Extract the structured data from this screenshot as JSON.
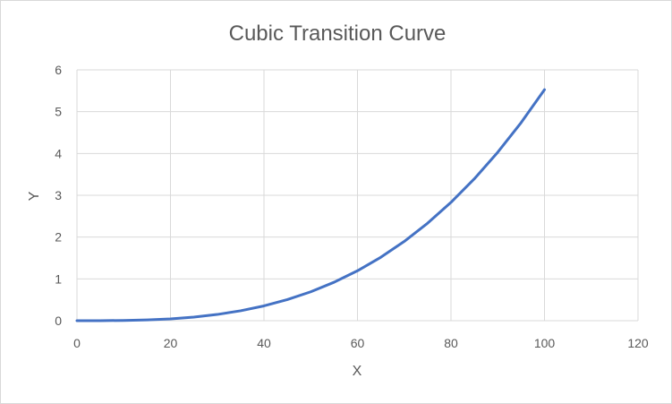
{
  "chart_data": {
    "type": "line",
    "title": "Cubic Transition Curve",
    "xlabel": "X",
    "ylabel": "Y",
    "xlim": [
      0,
      120
    ],
    "ylim": [
      0,
      6
    ],
    "xticks": [
      0,
      20,
      40,
      60,
      80,
      100,
      120
    ],
    "yticks": [
      0,
      1,
      2,
      3,
      4,
      5,
      6
    ],
    "grid": true,
    "legend": "none",
    "series": [
      {
        "color": "#4472c4",
        "x": [
          0,
          5,
          10,
          15,
          20,
          25,
          30,
          35,
          40,
          45,
          50,
          55,
          60,
          65,
          70,
          75,
          80,
          85,
          90,
          95,
          100
        ],
        "y": [
          0,
          0.001,
          0.006,
          0.019,
          0.044,
          0.086,
          0.149,
          0.237,
          0.354,
          0.504,
          0.691,
          0.92,
          1.194,
          1.518,
          1.896,
          2.332,
          2.83,
          3.394,
          4.029,
          4.738,
          5.527
        ]
      }
    ]
  }
}
